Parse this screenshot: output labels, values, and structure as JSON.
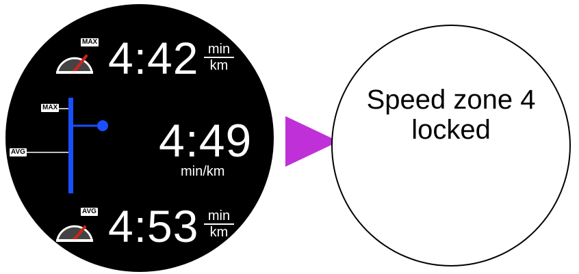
{
  "watch": {
    "top_row": {
      "badge": "MAX",
      "value": "4:42",
      "unit_top": "min",
      "unit_bottom": "km"
    },
    "middle": {
      "max_label": "MAX",
      "avg_label": "AVG",
      "value": "4:49",
      "unit": "min/km"
    },
    "bottom_row": {
      "badge": "AVG",
      "value": "4:53",
      "unit_top": "min",
      "unit_bottom": "km"
    },
    "colors": {
      "bar": "#1a4fff",
      "gauge_needle": "#d4231a",
      "face": "#000000"
    }
  },
  "arrow": {
    "color": "#c030d8"
  },
  "message": {
    "line1": "Speed zone 4",
    "line2": "locked"
  }
}
